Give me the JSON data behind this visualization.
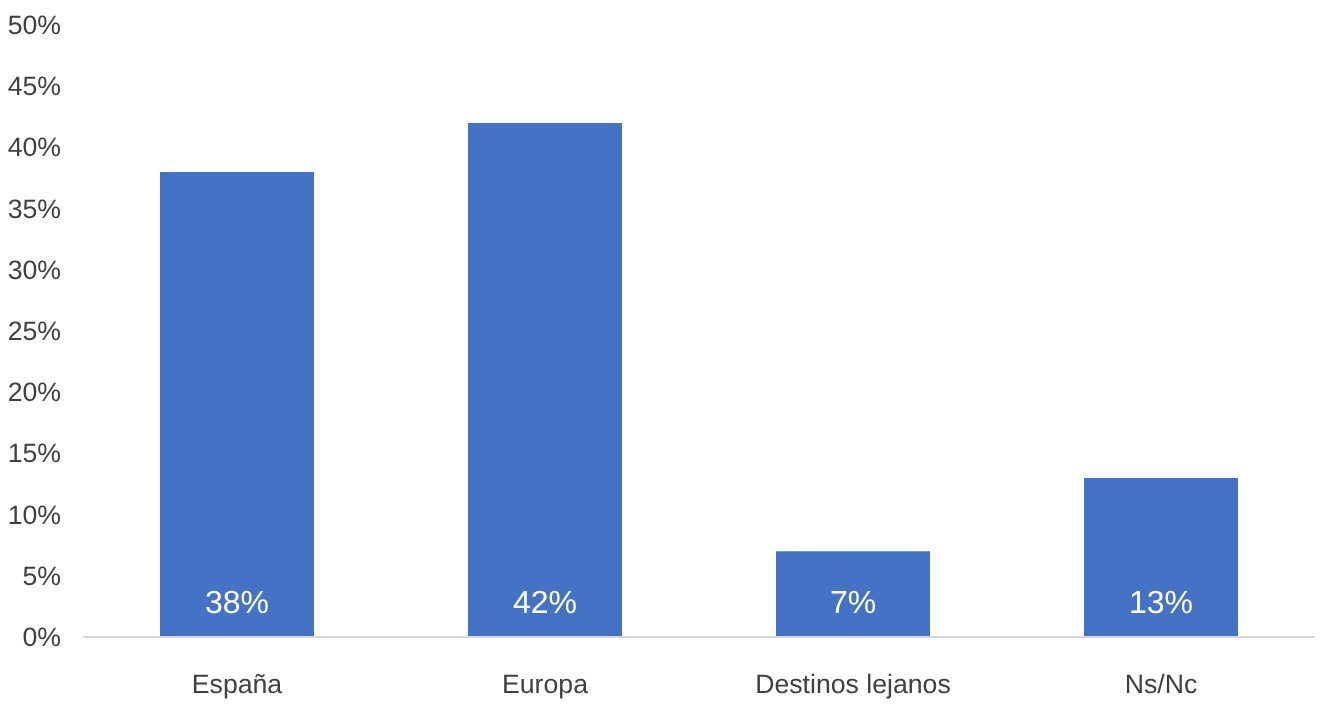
{
  "chart_data": {
    "type": "bar",
    "categories": [
      "España",
      "Europa",
      "Destinos lejanos",
      "Ns/Nc"
    ],
    "values": [
      38,
      42,
      7,
      13
    ],
    "value_labels": [
      "38%",
      "42%",
      "7%",
      "13%"
    ],
    "color": "#4472c4",
    "ylim": [
      0,
      50
    ],
    "yticks": [
      {
        "value": 0,
        "label": "0%"
      },
      {
        "value": 5,
        "label": "5%"
      },
      {
        "value": 10,
        "label": "10%"
      },
      {
        "value": 15,
        "label": "15%"
      },
      {
        "value": 20,
        "label": "20%"
      },
      {
        "value": 25,
        "label": "25%"
      },
      {
        "value": 30,
        "label": "30%"
      },
      {
        "value": 35,
        "label": "35%"
      },
      {
        "value": 40,
        "label": "40%"
      },
      {
        "value": 45,
        "label": "45%"
      },
      {
        "value": 50,
        "label": "50%"
      }
    ],
    "grid": false
  }
}
